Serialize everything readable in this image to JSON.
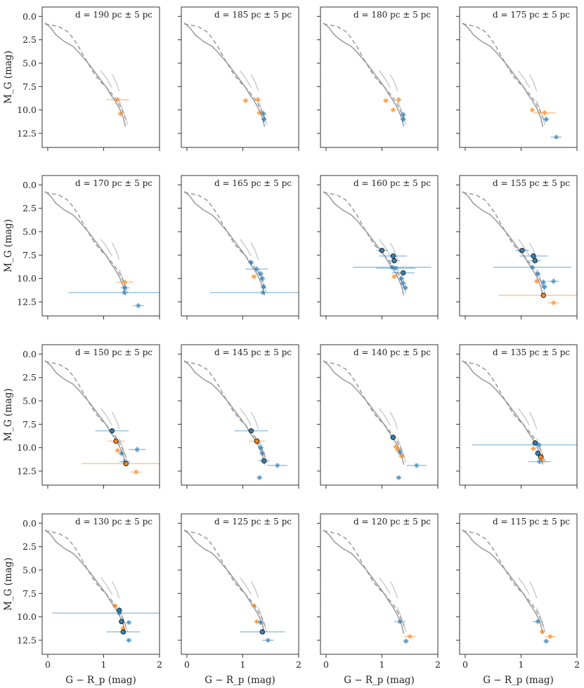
{
  "chart_data": {
    "type": "scatter",
    "layout": {
      "rows": 4,
      "cols": 4,
      "sharex": true,
      "sharey": true,
      "y_inverted": true
    },
    "xlabel": "G − R_p (mag)",
    "ylabel": "M_G (mag)",
    "xlim": [
      -0.1,
      2.0
    ],
    "ylim": [
      14.0,
      -1.0
    ],
    "xticks": [
      0,
      1,
      2
    ],
    "xtick_labels": [
      "0",
      "1",
      "2"
    ],
    "yticks": [
      0.0,
      2.5,
      5.0,
      7.5,
      10.0,
      12.5
    ],
    "ytick_labels": [
      "0.0",
      "2.5",
      "5.0",
      "7.5",
      "10.0",
      "12.5"
    ],
    "colors": {
      "isochrone_solid": "#999999",
      "isochrone_dashed": "#999999",
      "isochrone_light": "#cccccc",
      "blue": "#1f77b4",
      "orange": "#ff7f0e",
      "frame": "#333333"
    },
    "isochrones": {
      "solid": {
        "x": [
          -0.05,
          0.05,
          0.15,
          0.3,
          0.45,
          0.55,
          0.65,
          0.75,
          0.85,
          0.95,
          1.05,
          1.12,
          1.2,
          1.28,
          1.35,
          1.39
        ],
        "y": [
          0.7,
          1.2,
          2.0,
          2.7,
          3.2,
          3.8,
          4.5,
          5.2,
          6.0,
          6.8,
          7.6,
          8.3,
          9.0,
          9.8,
          10.8,
          11.8
        ]
      },
      "dashed": {
        "x": [
          -0.05,
          0.05,
          0.2,
          0.35,
          0.45,
          0.55,
          0.65,
          0.75,
          0.85,
          0.95,
          1.05,
          1.15,
          1.25,
          1.33,
          1.4
        ],
        "y": [
          0.8,
          0.9,
          1.1,
          1.6,
          2.3,
          3.2,
          4.3,
          5.3,
          6.3,
          7.0,
          7.6,
          8.3,
          9.1,
          10.0,
          11.0
        ]
      },
      "light": [
        {
          "x": [
            0.95,
            1.05,
            1.15
          ],
          "y": [
            5.8,
            6.6,
            7.6
          ]
        },
        {
          "x": [
            1.15,
            1.22,
            1.28
          ],
          "y": [
            6.2,
            7.0,
            8.0
          ]
        },
        {
          "x": [
            1.28,
            1.36,
            1.43
          ],
          "y": [
            9.0,
            10.3,
            11.6
          ]
        }
      ]
    },
    "panels": [
      {
        "title": "d = 190 pc ± 5 pc",
        "points": [
          {
            "x": 1.25,
            "y": 8.9,
            "xerr": 0.2,
            "yerr": 0.3,
            "color": "orange"
          },
          {
            "x": 1.3,
            "y": 10.4,
            "xerr": 0.05,
            "yerr": 0.2,
            "color": "orange"
          }
        ]
      },
      {
        "title": "d = 185 pc ± 5 pc",
        "points": [
          {
            "x": 1.05,
            "y": 9.0,
            "xerr": 0.05,
            "yerr": 0.2,
            "color": "orange"
          },
          {
            "x": 1.27,
            "y": 8.9,
            "xerr": 0.05,
            "yerr": 0.3,
            "color": "orange"
          },
          {
            "x": 1.3,
            "y": 10.3,
            "xerr": 0.05,
            "yerr": 0.2,
            "color": "orange"
          },
          {
            "x": 1.37,
            "y": 10.4,
            "xerr": 0.05,
            "yerr": 0.3,
            "color": "blue"
          },
          {
            "x": 1.38,
            "y": 11.0,
            "xerr": 0.05,
            "yerr": 0.3,
            "color": "blue"
          }
        ]
      },
      {
        "title": "d = 180 pc ± 5 pc",
        "points": [
          {
            "x": 1.07,
            "y": 9.0,
            "xerr": 0.05,
            "yerr": 0.2,
            "color": "orange"
          },
          {
            "x": 1.3,
            "y": 8.9,
            "xerr": 0.05,
            "yerr": 0.3,
            "color": "orange"
          },
          {
            "x": 1.2,
            "y": 10.0,
            "xerr": 0.03,
            "yerr": 0.2,
            "color": "orange"
          },
          {
            "x": 1.38,
            "y": 10.5,
            "xerr": 0.05,
            "yerr": 0.3,
            "color": "blue"
          },
          {
            "x": 1.38,
            "y": 11.0,
            "xerr": 0.05,
            "yerr": 0.3,
            "color": "blue"
          }
        ]
      },
      {
        "title": "d = 175 pc ± 5 pc",
        "points": [
          {
            "x": 1.2,
            "y": 10.0,
            "xerr": 0.03,
            "yerr": 0.2,
            "color": "orange"
          },
          {
            "x": 1.42,
            "y": 10.3,
            "xerr": 0.2,
            "yerr": 0.3,
            "color": "orange"
          },
          {
            "x": 1.45,
            "y": 11.0,
            "xerr": 0.05,
            "yerr": 0.3,
            "color": "blue"
          },
          {
            "x": 1.63,
            "y": 12.9,
            "xerr": 0.1,
            "yerr": 0.2,
            "color": "blue"
          }
        ]
      },
      {
        "title": "d = 170 pc ± 5 pc",
        "points": [
          {
            "x": 1.38,
            "y": 10.4,
            "xerr": 0.15,
            "yerr": 0.2,
            "color": "orange"
          },
          {
            "x": 1.38,
            "y": 11.0,
            "xerr": 0.08,
            "yerr": 0.2,
            "color": "blue"
          },
          {
            "x": 1.37,
            "y": 11.5,
            "xerr": 1.0,
            "yerr": 0.2,
            "color": "blue"
          },
          {
            "x": 1.62,
            "y": 12.9,
            "xerr": 0.1,
            "yerr": 0.2,
            "color": "blue"
          }
        ]
      },
      {
        "title": "d = 165 pc ± 5 pc",
        "points": [
          {
            "x": 1.15,
            "y": 8.3,
            "xerr": 0.05,
            "yerr": 0.3,
            "color": "blue"
          },
          {
            "x": 1.25,
            "y": 9.0,
            "xerr": 0.2,
            "yerr": 0.3,
            "color": "blue"
          },
          {
            "x": 1.2,
            "y": 9.8,
            "xerr": 0.05,
            "yerr": 0.2,
            "color": "orange"
          },
          {
            "x": 1.32,
            "y": 9.5,
            "xerr": 0.05,
            "yerr": 0.3,
            "color": "blue"
          },
          {
            "x": 1.35,
            "y": 10.0,
            "xerr": 0.05,
            "yerr": 0.3,
            "color": "blue"
          },
          {
            "x": 1.37,
            "y": 10.9,
            "xerr": 0.05,
            "yerr": 0.3,
            "color": "blue"
          },
          {
            "x": 1.36,
            "y": 11.5,
            "xerr": 0.95,
            "yerr": 0.2,
            "color": "blue"
          }
        ]
      },
      {
        "title": "d = 160 pc ± 5 pc",
        "points": [
          {
            "x": 1.0,
            "y": 7.0,
            "xerr": 0.1,
            "yerr": 0.2,
            "color": "blue",
            "highlight": true
          },
          {
            "x": 1.2,
            "y": 7.6,
            "xerr": 0.25,
            "yerr": 0.2,
            "color": "blue",
            "highlight": true
          },
          {
            "x": 1.22,
            "y": 8.1,
            "xerr": 0.1,
            "yerr": 0.2,
            "color": "blue",
            "highlight": true
          },
          {
            "x": 1.18,
            "y": 8.8,
            "xerr": 0.7,
            "yerr": 0.2,
            "color": "blue"
          },
          {
            "x": 1.25,
            "y": 8.9,
            "xerr": 0.35,
            "yerr": 0.2,
            "color": "blue"
          },
          {
            "x": 1.38,
            "y": 9.4,
            "xerr": 0.2,
            "yerr": 0.2,
            "color": "blue",
            "highlight": true
          },
          {
            "x": 1.22,
            "y": 9.8,
            "xerr": 0.05,
            "yerr": 0.2,
            "color": "orange"
          },
          {
            "x": 1.35,
            "y": 10.0,
            "xerr": 0.05,
            "yerr": 0.3,
            "color": "blue"
          },
          {
            "x": 1.38,
            "y": 10.5,
            "xerr": 0.05,
            "yerr": 0.3,
            "color": "blue"
          },
          {
            "x": 1.42,
            "y": 11.0,
            "xerr": 0.05,
            "yerr": 0.3,
            "color": "blue"
          }
        ]
      },
      {
        "title": "d = 155 pc ± 5 pc",
        "points": [
          {
            "x": 1.02,
            "y": 7.0,
            "xerr": 0.12,
            "yerr": 0.2,
            "color": "blue",
            "highlight": true
          },
          {
            "x": 1.22,
            "y": 7.6,
            "xerr": 0.25,
            "yerr": 0.2,
            "color": "blue",
            "highlight": true
          },
          {
            "x": 1.25,
            "y": 8.1,
            "xerr": 0.1,
            "yerr": 0.2,
            "color": "blue",
            "highlight": true
          },
          {
            "x": 1.2,
            "y": 8.8,
            "xerr": 0.7,
            "yerr": 0.2,
            "color": "blue"
          },
          {
            "x": 1.3,
            "y": 9.5,
            "xerr": 0.05,
            "yerr": 0.3,
            "color": "blue"
          },
          {
            "x": 1.28,
            "y": 10.3,
            "xerr": 0.05,
            "yerr": 0.2,
            "color": "orange"
          },
          {
            "x": 1.4,
            "y": 10.4,
            "xerr": 0.05,
            "yerr": 0.3,
            "color": "blue"
          },
          {
            "x": 1.58,
            "y": 10.3,
            "xerr": 0.1,
            "yerr": 0.3,
            "color": "blue"
          },
          {
            "x": 1.42,
            "y": 10.9,
            "xerr": 0.05,
            "yerr": 0.3,
            "color": "blue"
          },
          {
            "x": 1.4,
            "y": 11.8,
            "xerr": 0.8,
            "yerr": 0.2,
            "color": "orange",
            "highlight": true
          },
          {
            "x": 1.58,
            "y": 12.6,
            "xerr": 0.1,
            "yerr": 0.2,
            "color": "orange"
          }
        ]
      },
      {
        "title": "d = 150 pc ± 5 pc",
        "points": [
          {
            "x": 1.15,
            "y": 8.2,
            "xerr": 0.3,
            "yerr": 0.2,
            "color": "blue",
            "highlight": true
          },
          {
            "x": 1.22,
            "y": 9.3,
            "xerr": 0.15,
            "yerr": 0.2,
            "color": "orange",
            "highlight": true
          },
          {
            "x": 1.25,
            "y": 10.3,
            "xerr": 0.05,
            "yerr": 0.2,
            "color": "orange"
          },
          {
            "x": 1.32,
            "y": 10.6,
            "xerr": 0.05,
            "yerr": 0.3,
            "color": "blue"
          },
          {
            "x": 1.6,
            "y": 10.2,
            "xerr": 0.15,
            "yerr": 0.3,
            "color": "blue"
          },
          {
            "x": 1.38,
            "y": 11.5,
            "xerr": 0.1,
            "yerr": 0.3,
            "color": "blue"
          },
          {
            "x": 1.4,
            "y": 11.7,
            "xerr": 0.8,
            "yerr": 0.2,
            "color": "orange",
            "highlight": true
          },
          {
            "x": 1.58,
            "y": 12.6,
            "xerr": 0.1,
            "yerr": 0.2,
            "color": "orange"
          }
        ]
      },
      {
        "title": "d = 145 pc ± 5 pc",
        "points": [
          {
            "x": 1.15,
            "y": 8.2,
            "xerr": 0.3,
            "yerr": 0.2,
            "color": "blue",
            "highlight": true
          },
          {
            "x": 1.25,
            "y": 9.3,
            "xerr": 0.15,
            "yerr": 0.2,
            "color": "orange",
            "highlight": true
          },
          {
            "x": 1.32,
            "y": 10.0,
            "xerr": 0.05,
            "yerr": 0.3,
            "color": "blue"
          },
          {
            "x": 1.35,
            "y": 10.6,
            "xerr": 0.05,
            "yerr": 0.3,
            "color": "blue"
          },
          {
            "x": 1.38,
            "y": 11.4,
            "xerr": 0.1,
            "yerr": 0.3,
            "color": "blue",
            "highlight": true
          },
          {
            "x": 1.62,
            "y": 11.9,
            "xerr": 0.18,
            "yerr": 0.2,
            "color": "blue"
          },
          {
            "x": 1.3,
            "y": 13.2,
            "xerr": 0.05,
            "yerr": 0.2,
            "color": "blue"
          }
        ]
      },
      {
        "title": "d = 140 pc ± 5 pc",
        "points": [
          {
            "x": 1.2,
            "y": 8.9,
            "xerr": 0.05,
            "yerr": 0.3,
            "color": "blue",
            "highlight": true
          },
          {
            "x": 1.25,
            "y": 9.9,
            "xerr": 0.05,
            "yerr": 0.2,
            "color": "orange"
          },
          {
            "x": 1.28,
            "y": 10.2,
            "xerr": 0.05,
            "yerr": 0.2,
            "color": "orange"
          },
          {
            "x": 1.32,
            "y": 10.5,
            "xerr": 0.05,
            "yerr": 0.3,
            "color": "blue"
          },
          {
            "x": 1.35,
            "y": 10.9,
            "xerr": 0.05,
            "yerr": 0.2,
            "color": "orange"
          },
          {
            "x": 1.62,
            "y": 11.9,
            "xerr": 0.18,
            "yerr": 0.2,
            "color": "blue"
          },
          {
            "x": 1.3,
            "y": 13.2,
            "xerr": 0.05,
            "yerr": 0.2,
            "color": "blue"
          }
        ]
      },
      {
        "title": "d = 135 pc ± 5 pc",
        "points": [
          {
            "x": 1.25,
            "y": 9.5,
            "xerr": 0.05,
            "yerr": 0.3,
            "color": "blue",
            "highlight": true
          },
          {
            "x": 1.32,
            "y": 9.7,
            "xerr": 1.2,
            "yerr": 0.2,
            "color": "blue"
          },
          {
            "x": 1.22,
            "y": 10.1,
            "xerr": 0.05,
            "yerr": 0.2,
            "color": "orange"
          },
          {
            "x": 1.3,
            "y": 10.6,
            "xerr": 0.05,
            "yerr": 0.3,
            "color": "blue",
            "highlight": true
          },
          {
            "x": 1.35,
            "y": 11.0,
            "xerr": 0.05,
            "yerr": 0.2,
            "color": "orange",
            "highlight": true
          },
          {
            "x": 1.38,
            "y": 11.3,
            "xerr": 0.05,
            "yerr": 0.2,
            "color": "orange"
          },
          {
            "x": 1.33,
            "y": 11.5,
            "xerr": 0.2,
            "yerr": 0.2,
            "color": "blue"
          }
        ]
      },
      {
        "title": "d = 130 pc ± 5 pc",
        "points": [
          {
            "x": 1.2,
            "y": 8.8,
            "xerr": 0.05,
            "yerr": 0.2,
            "color": "orange"
          },
          {
            "x": 1.28,
            "y": 9.3,
            "xerr": 0.05,
            "yerr": 0.3,
            "color": "blue",
            "highlight": true
          },
          {
            "x": 1.28,
            "y": 9.6,
            "xerr": 1.2,
            "yerr": 0.2,
            "color": "blue"
          },
          {
            "x": 1.32,
            "y": 10.5,
            "xerr": 0.05,
            "yerr": 0.2,
            "color": "blue",
            "highlight": true
          },
          {
            "x": 1.45,
            "y": 10.6,
            "xerr": 0.05,
            "yerr": 0.2,
            "color": "blue"
          },
          {
            "x": 1.35,
            "y": 11.2,
            "xerr": 0.05,
            "yerr": 0.2,
            "color": "orange"
          },
          {
            "x": 1.35,
            "y": 11.6,
            "xerr": 0.3,
            "yerr": 0.2,
            "color": "blue",
            "highlight": true
          },
          {
            "x": 1.45,
            "y": 12.5,
            "xerr": 0.05,
            "yerr": 0.2,
            "color": "blue"
          }
        ]
      },
      {
        "title": "d = 125 pc ± 5 pc",
        "points": [
          {
            "x": 1.2,
            "y": 8.8,
            "xerr": 0.05,
            "yerr": 0.2,
            "color": "orange"
          },
          {
            "x": 1.25,
            "y": 10.5,
            "xerr": 0.05,
            "yerr": 0.2,
            "color": "orange"
          },
          {
            "x": 1.32,
            "y": 10.6,
            "xerr": 0.05,
            "yerr": 0.2,
            "color": "blue"
          },
          {
            "x": 1.35,
            "y": 11.6,
            "xerr": 0.4,
            "yerr": 0.2,
            "color": "blue",
            "highlight": true
          },
          {
            "x": 1.45,
            "y": 12.5,
            "xerr": 0.1,
            "yerr": 0.2,
            "color": "blue"
          }
        ]
      },
      {
        "title": "d = 120 pc ± 5 pc",
        "points": [
          {
            "x": 1.32,
            "y": 10.5,
            "xerr": 0.1,
            "yerr": 0.2,
            "color": "blue"
          },
          {
            "x": 1.5,
            "y": 12.1,
            "xerr": 0.1,
            "yerr": 0.2,
            "color": "orange"
          },
          {
            "x": 1.43,
            "y": 12.6,
            "xerr": 0.05,
            "yerr": 0.2,
            "color": "blue"
          }
        ]
      },
      {
        "title": "d = 115 pc ± 5 pc",
        "points": [
          {
            "x": 1.3,
            "y": 10.5,
            "xerr": 0.1,
            "yerr": 0.2,
            "color": "blue"
          },
          {
            "x": 1.38,
            "y": 11.6,
            "xerr": 0.05,
            "yerr": 0.2,
            "color": "orange"
          },
          {
            "x": 1.52,
            "y": 12.1,
            "xerr": 0.1,
            "yerr": 0.2,
            "color": "orange"
          },
          {
            "x": 1.45,
            "y": 12.6,
            "xerr": 0.05,
            "yerr": 0.2,
            "color": "blue"
          }
        ]
      }
    ]
  }
}
